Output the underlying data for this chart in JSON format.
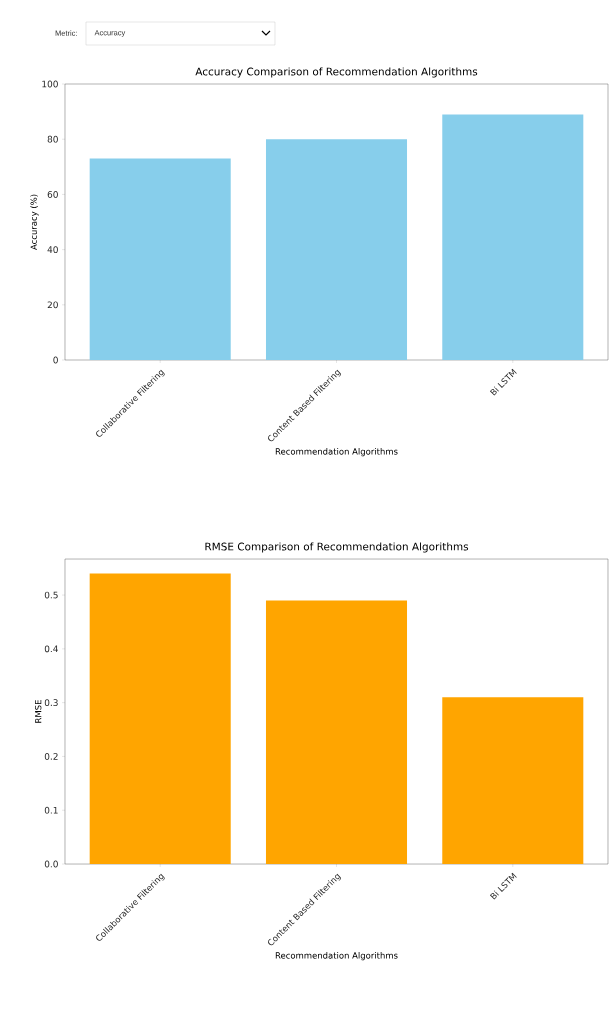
{
  "chart_data": [
    {
      "type": "bar",
      "title": "Accuracy Comparison of Recommendation Algorithms",
      "xlabel": "Recommendation Algorithms",
      "ylabel": "Accuracy (%)",
      "categories": [
        "Collaborative Filtering",
        "Content Based Filtering",
        "Bi LSTM"
      ],
      "values": [
        73,
        80,
        89
      ],
      "color": "#87ceeb",
      "ylim": [
        0,
        100
      ],
      "yticks": [
        0,
        20,
        40,
        60,
        80,
        100
      ],
      "grid": false,
      "annotations": [
        "Metric:",
        "Accuracy"
      ]
    },
    {
      "type": "bar",
      "title": "RMSE Comparison of Recommendation Algorithms",
      "xlabel": "Recommendation Algorithms",
      "ylabel": "RMSE",
      "categories": [
        "Collaborative Filtering",
        "Content Based Filtering",
        "Bi LSTM"
      ],
      "values": [
        0.54,
        0.49,
        0.31
      ],
      "color": "#ffa500",
      "ylim": [
        0,
        0.567
      ],
      "yticks": [
        {
          "value": 0,
          "label": "0.0"
        },
        0.1,
        0.2,
        0.3,
        0.4,
        0.5
      ],
      "grid": false
    }
  ]
}
